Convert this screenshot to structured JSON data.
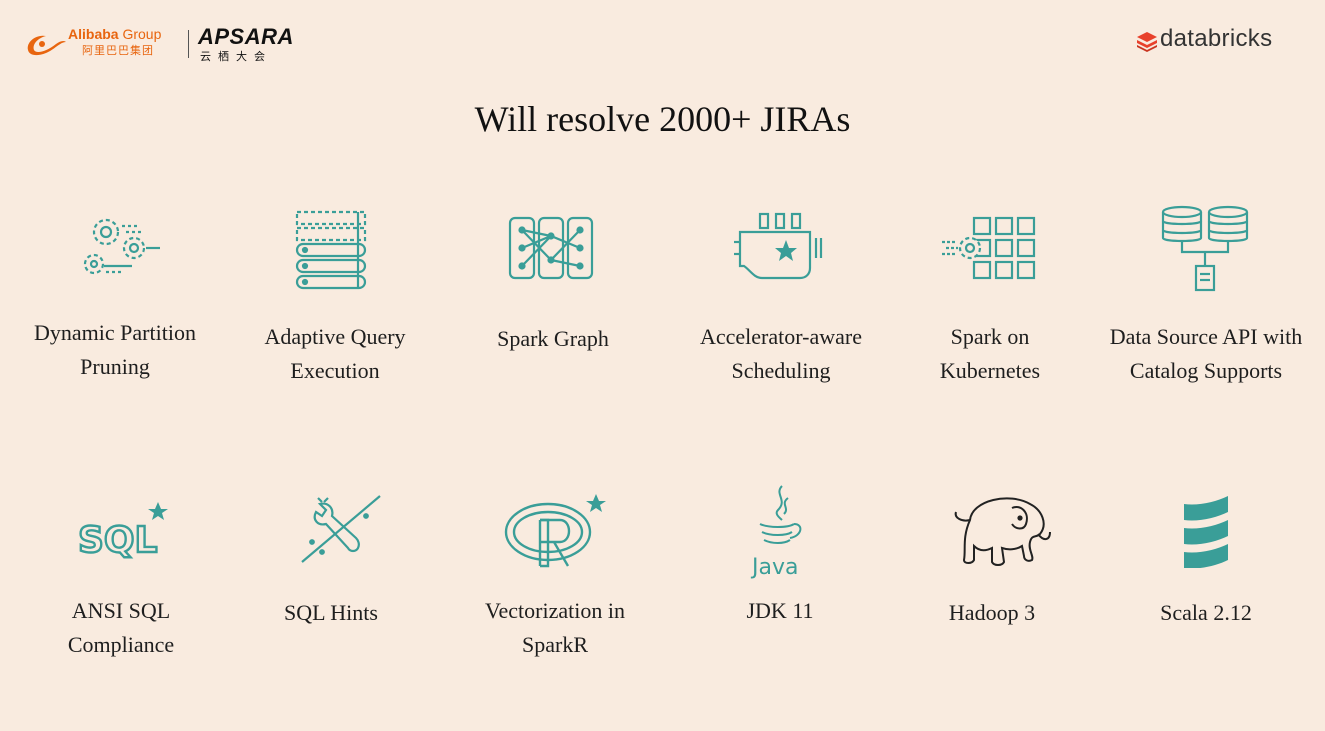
{
  "header": {
    "alibaba_brand": "Alibaba",
    "alibaba_group": "Group",
    "alibaba_cn": "阿里巴巴集团",
    "apsara_name": "APSARA",
    "apsara_cn": "云栖大会",
    "databricks_name": "databricks"
  },
  "title": "Will resolve 2000+ JIRAs",
  "features": [
    {
      "line1": "Dynamic Partition",
      "line2": "Pruning",
      "icon": "gears-icon"
    },
    {
      "line1": "Adaptive Query",
      "line2": "Execution",
      "icon": "stacked-layers-icon"
    },
    {
      "line1": "Spark Graph",
      "line2": "",
      "icon": "graph-network-icon"
    },
    {
      "line1": "Accelerator-aware",
      "line2": "Scheduling",
      "icon": "gpu-card-icon"
    },
    {
      "line1": "Spark on",
      "line2": "Kubernetes",
      "icon": "gear-grid-icon"
    },
    {
      "line1": "Data Source API with",
      "line2": "Catalog Supports",
      "icon": "databases-icon"
    },
    {
      "line1": "ANSI SQL",
      "line2": "Compliance",
      "icon": "sql-star-icon"
    },
    {
      "line1": "SQL Hints",
      "line2": "",
      "icon": "wrench-screwdriver-icon"
    },
    {
      "line1": "Vectorization in",
      "line2": "SparkR",
      "icon": "r-logo-star-icon"
    },
    {
      "line1": "JDK 11",
      "line2": "",
      "icon": "java-logo-icon"
    },
    {
      "line1": "Hadoop 3",
      "line2": "",
      "icon": "hadoop-elephant-icon"
    },
    {
      "line1": "Scala 2.12",
      "line2": "",
      "icon": "scala-logo-icon"
    }
  ],
  "colors": {
    "background": "#f9ebdf",
    "teal": "#3a9e98",
    "alibaba_orange": "#e8650f",
    "databricks_red": "#e8412b"
  }
}
